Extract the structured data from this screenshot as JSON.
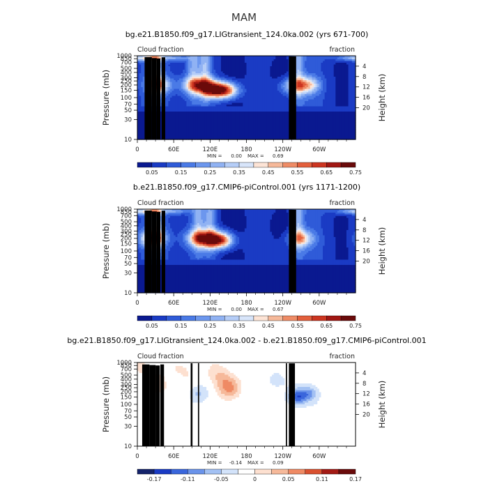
{
  "suptitle": "MAM",
  "colors": {
    "abs_levels": [
      "#0a1990",
      "#1a3bc4",
      "#2f5bd8",
      "#4a7ae6",
      "#6c97ee",
      "#90b2f3",
      "#b5cdf7",
      "#d8e5fa",
      "#fde4d6",
      "#f6b99a",
      "#ef8c66",
      "#e35f3c",
      "#cc3520",
      "#a11713",
      "#6a0a0a"
    ],
    "diff_levels": [
      "#14236b",
      "#1a3bc4",
      "#3a66dc",
      "#6a93ea",
      "#a3c1f3",
      "#d3e3fa",
      "#ffffff",
      "#fde0d0",
      "#f6b99a",
      "#ef8a64",
      "#d9502f",
      "#a31a14",
      "#6a0a0a"
    ],
    "land": "#000000",
    "frame": "#000000"
  },
  "axes_text": {
    "left_label": "Pressure (mb)",
    "right_label": "Height (km)",
    "top_left": "Cloud fraction",
    "top_right": "fraction",
    "pressure_ticks": [
      "10",
      "30",
      "50",
      "70",
      "100",
      "150",
      "200",
      "250",
      "300",
      "400",
      "500",
      "700",
      "850",
      "1000"
    ],
    "height_ticks": [
      "20",
      "16",
      "12",
      "8",
      "4"
    ],
    "lon_ticks": [
      "0",
      "60E",
      "120E",
      "180",
      "120W",
      "60W"
    ]
  },
  "chart_data": [
    {
      "type": "heatmap",
      "title": "bg.e21.B1850.f09_g17.LIGtransient_124.0ka.002 (yrs 671-700)",
      "xlabel": "",
      "ylabel": "Pressure (mb)",
      "y2label": "Height (km)",
      "xlim": [
        0,
        360
      ],
      "ylim": [
        1000,
        10
      ],
      "y_scale": "log",
      "stats": {
        "min_label": "MIN =",
        "min": "0.00",
        "max_label": "MAX =",
        "max": "0.69"
      },
      "colorbar_ticks": [
        "0.05",
        "0.15",
        "0.25",
        "0.35",
        "0.45",
        "0.55",
        "0.65",
        "0.75"
      ],
      "features": {
        "upper_peaks": [
          [
            35,
            200,
            0.45
          ],
          [
            90,
            200,
            0.35
          ],
          [
            110,
            190,
            0.5
          ],
          [
            130,
            150,
            0.62
          ],
          [
            150,
            150,
            0.5
          ],
          [
            255,
            190,
            0.35
          ],
          [
            280,
            200,
            0.45
          ]
        ],
        "columns": [
          [
            30,
            8,
            0.35
          ],
          [
            92,
            7,
            0.25
          ],
          [
            112,
            7,
            0.28
          ],
          [
            265,
            7,
            0.3
          ]
        ],
        "low_stratus": [
          [
            15,
            880,
            0.32
          ],
          [
            60,
            900,
            0.25
          ],
          [
            345,
            900,
            0.22
          ]
        ]
      }
    },
    {
      "type": "heatmap",
      "title": "b.e21.B1850.f09_g17.CMIP6-piControl.001 (yrs 1171-1200)",
      "xlabel": "",
      "ylabel": "Pressure (mb)",
      "y2label": "Height (km)",
      "xlim": [
        0,
        360
      ],
      "ylim": [
        1000,
        10
      ],
      "y_scale": "log",
      "stats": {
        "min_label": "MIN =",
        "min": "0.00",
        "max_label": "MAX =",
        "max": "0.67"
      },
      "colorbar_ticks": [
        "0.05",
        "0.15",
        "0.25",
        "0.35",
        "0.45",
        "0.55",
        "0.65",
        "0.75"
      ],
      "features": {
        "upper_peaks": [
          [
            25,
            200,
            0.55
          ],
          [
            100,
            200,
            0.45
          ],
          [
            120,
            190,
            0.5
          ],
          [
            140,
            180,
            0.58
          ],
          [
            270,
            200,
            0.45
          ]
        ],
        "columns": [
          [
            30,
            8,
            0.35
          ],
          [
            100,
            7,
            0.25
          ],
          [
            120,
            7,
            0.26
          ],
          [
            265,
            7,
            0.3
          ]
        ],
        "low_stratus": [
          [
            15,
            880,
            0.32
          ],
          [
            60,
            900,
            0.25
          ],
          [
            345,
            900,
            0.22
          ]
        ]
      }
    },
    {
      "type": "heatmap",
      "title": "bg.e21.B1850.f09_g17.LIGtransient_124.0ka.002 - b.e21.B1850.f09_g17.CMIP6-piControl.001",
      "xlabel": "",
      "ylabel": "Pressure (mb)",
      "y2label": "Height (km)",
      "xlim": [
        0,
        360
      ],
      "ylim": [
        1000,
        10
      ],
      "y_scale": "log",
      "stats": {
        "min_label": "MIN =",
        "min": "-0.14",
        "max_label": "MAX =",
        "max": "0.09"
      },
      "colorbar_ticks": [
        "-0.17",
        "-0.11",
        "-0.05",
        "0",
        "0.05",
        "0.11",
        "0.17"
      ],
      "features": {
        "pos": [
          [
            150,
            250,
            0.09
          ],
          [
            135,
            500,
            0.05
          ],
          [
            40,
            300,
            0.05
          ],
          [
            75,
            600,
            0.04
          ],
          [
            10,
            800,
            0.04
          ]
        ],
        "neg": [
          [
            265,
            150,
            -0.12
          ],
          [
            285,
            180,
            -0.08
          ],
          [
            100,
            180,
            -0.05
          ],
          [
            60,
            400,
            -0.03
          ],
          [
            230,
            350,
            -0.03
          ]
        ]
      }
    }
  ]
}
